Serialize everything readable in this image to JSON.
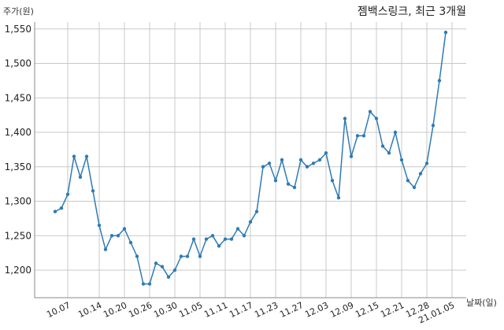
{
  "chart_data": {
    "type": "line",
    "title": "젬백스링크, 최근 3개월",
    "ylabel": "주가(원)",
    "xlabel": "날짜(일)",
    "ylim": [
      1160,
      1560
    ],
    "yticks": [
      1200,
      1250,
      1300,
      1350,
      1400,
      1450,
      1500,
      1550
    ],
    "ytick_labels": [
      "1,200",
      "1,250",
      "1,300",
      "1,350",
      "1,400",
      "1,450",
      "1,500",
      "1,550"
    ],
    "xtick_labels": [
      "10.07",
      "10.14",
      "10.20",
      "10.26",
      "10.30",
      "11.05",
      "11.11",
      "11.17",
      "11.23",
      "11.27",
      "12.03",
      "12.09",
      "12.15",
      "12.21",
      "12.28",
      "21.01.05"
    ],
    "xtick_indices": [
      3,
      8,
      12,
      16,
      20,
      24,
      28,
      32,
      36,
      40,
      44,
      48,
      52,
      56,
      60,
      64
    ],
    "grid": true,
    "color": "#2e7bb4",
    "series": [
      {
        "values": [
          1285,
          1290,
          1310,
          1365,
          1335,
          1365,
          1315,
          1265,
          1230,
          1250,
          1250,
          1260,
          1240,
          1220,
          1180,
          1180,
          1210,
          1205,
          1190,
          1200,
          1220,
          1220,
          1245,
          1220,
          1245,
          1250,
          1235,
          1245,
          1245,
          1260,
          1250,
          1270,
          1285,
          1350,
          1355,
          1330,
          1360,
          1325,
          1320,
          1360,
          1350,
          1355,
          1360,
          1370,
          1330,
          1305,
          1420,
          1365,
          1395,
          1395,
          1430,
          1420,
          1380,
          1370,
          1400,
          1360,
          1330,
          1320,
          1340,
          1355,
          1410,
          1475,
          1545
        ]
      }
    ]
  }
}
